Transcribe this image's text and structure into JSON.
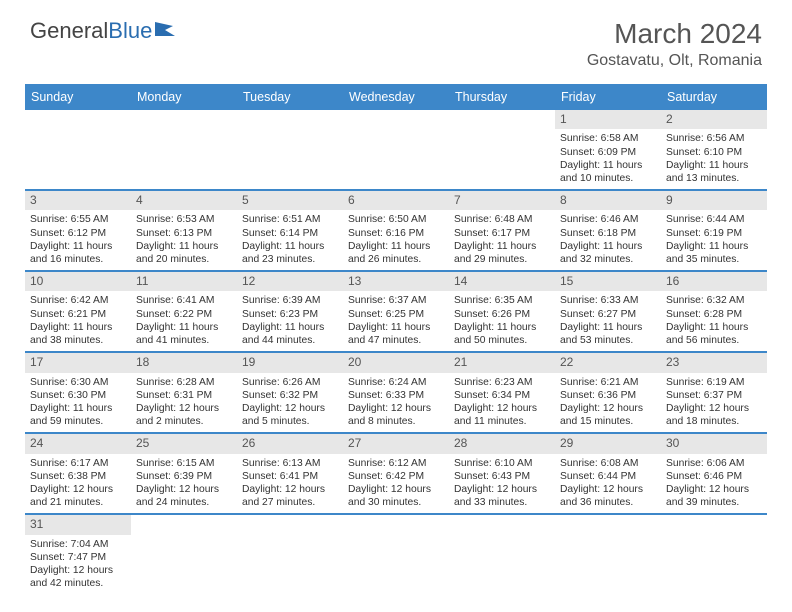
{
  "logo": {
    "text1": "General",
    "text2": "Blue"
  },
  "title": "March 2024",
  "location": "Gostavatu, Olt, Romania",
  "colors": {
    "header_bg": "#3d87c9",
    "header_text": "#ffffff",
    "daynum_bg": "#e7e7e7",
    "week_border": "#3d87c9",
    "body_text": "#333333",
    "title_text": "#555555"
  },
  "dayNames": [
    "Sunday",
    "Monday",
    "Tuesday",
    "Wednesday",
    "Thursday",
    "Friday",
    "Saturday"
  ],
  "weeks": [
    [
      {
        "n": "",
        "sr": "",
        "ss": "",
        "dl": ""
      },
      {
        "n": "",
        "sr": "",
        "ss": "",
        "dl": ""
      },
      {
        "n": "",
        "sr": "",
        "ss": "",
        "dl": ""
      },
      {
        "n": "",
        "sr": "",
        "ss": "",
        "dl": ""
      },
      {
        "n": "",
        "sr": "",
        "ss": "",
        "dl": ""
      },
      {
        "n": "1",
        "sr": "Sunrise: 6:58 AM",
        "ss": "Sunset: 6:09 PM",
        "dl": "Daylight: 11 hours and 10 minutes."
      },
      {
        "n": "2",
        "sr": "Sunrise: 6:56 AM",
        "ss": "Sunset: 6:10 PM",
        "dl": "Daylight: 11 hours and 13 minutes."
      }
    ],
    [
      {
        "n": "3",
        "sr": "Sunrise: 6:55 AM",
        "ss": "Sunset: 6:12 PM",
        "dl": "Daylight: 11 hours and 16 minutes."
      },
      {
        "n": "4",
        "sr": "Sunrise: 6:53 AM",
        "ss": "Sunset: 6:13 PM",
        "dl": "Daylight: 11 hours and 20 minutes."
      },
      {
        "n": "5",
        "sr": "Sunrise: 6:51 AM",
        "ss": "Sunset: 6:14 PM",
        "dl": "Daylight: 11 hours and 23 minutes."
      },
      {
        "n": "6",
        "sr": "Sunrise: 6:50 AM",
        "ss": "Sunset: 6:16 PM",
        "dl": "Daylight: 11 hours and 26 minutes."
      },
      {
        "n": "7",
        "sr": "Sunrise: 6:48 AM",
        "ss": "Sunset: 6:17 PM",
        "dl": "Daylight: 11 hours and 29 minutes."
      },
      {
        "n": "8",
        "sr": "Sunrise: 6:46 AM",
        "ss": "Sunset: 6:18 PM",
        "dl": "Daylight: 11 hours and 32 minutes."
      },
      {
        "n": "9",
        "sr": "Sunrise: 6:44 AM",
        "ss": "Sunset: 6:19 PM",
        "dl": "Daylight: 11 hours and 35 minutes."
      }
    ],
    [
      {
        "n": "10",
        "sr": "Sunrise: 6:42 AM",
        "ss": "Sunset: 6:21 PM",
        "dl": "Daylight: 11 hours and 38 minutes."
      },
      {
        "n": "11",
        "sr": "Sunrise: 6:41 AM",
        "ss": "Sunset: 6:22 PM",
        "dl": "Daylight: 11 hours and 41 minutes."
      },
      {
        "n": "12",
        "sr": "Sunrise: 6:39 AM",
        "ss": "Sunset: 6:23 PM",
        "dl": "Daylight: 11 hours and 44 minutes."
      },
      {
        "n": "13",
        "sr": "Sunrise: 6:37 AM",
        "ss": "Sunset: 6:25 PM",
        "dl": "Daylight: 11 hours and 47 minutes."
      },
      {
        "n": "14",
        "sr": "Sunrise: 6:35 AM",
        "ss": "Sunset: 6:26 PM",
        "dl": "Daylight: 11 hours and 50 minutes."
      },
      {
        "n": "15",
        "sr": "Sunrise: 6:33 AM",
        "ss": "Sunset: 6:27 PM",
        "dl": "Daylight: 11 hours and 53 minutes."
      },
      {
        "n": "16",
        "sr": "Sunrise: 6:32 AM",
        "ss": "Sunset: 6:28 PM",
        "dl": "Daylight: 11 hours and 56 minutes."
      }
    ],
    [
      {
        "n": "17",
        "sr": "Sunrise: 6:30 AM",
        "ss": "Sunset: 6:30 PM",
        "dl": "Daylight: 11 hours and 59 minutes."
      },
      {
        "n": "18",
        "sr": "Sunrise: 6:28 AM",
        "ss": "Sunset: 6:31 PM",
        "dl": "Daylight: 12 hours and 2 minutes."
      },
      {
        "n": "19",
        "sr": "Sunrise: 6:26 AM",
        "ss": "Sunset: 6:32 PM",
        "dl": "Daylight: 12 hours and 5 minutes."
      },
      {
        "n": "20",
        "sr": "Sunrise: 6:24 AM",
        "ss": "Sunset: 6:33 PM",
        "dl": "Daylight: 12 hours and 8 minutes."
      },
      {
        "n": "21",
        "sr": "Sunrise: 6:23 AM",
        "ss": "Sunset: 6:34 PM",
        "dl": "Daylight: 12 hours and 11 minutes."
      },
      {
        "n": "22",
        "sr": "Sunrise: 6:21 AM",
        "ss": "Sunset: 6:36 PM",
        "dl": "Daylight: 12 hours and 15 minutes."
      },
      {
        "n": "23",
        "sr": "Sunrise: 6:19 AM",
        "ss": "Sunset: 6:37 PM",
        "dl": "Daylight: 12 hours and 18 minutes."
      }
    ],
    [
      {
        "n": "24",
        "sr": "Sunrise: 6:17 AM",
        "ss": "Sunset: 6:38 PM",
        "dl": "Daylight: 12 hours and 21 minutes."
      },
      {
        "n": "25",
        "sr": "Sunrise: 6:15 AM",
        "ss": "Sunset: 6:39 PM",
        "dl": "Daylight: 12 hours and 24 minutes."
      },
      {
        "n": "26",
        "sr": "Sunrise: 6:13 AM",
        "ss": "Sunset: 6:41 PM",
        "dl": "Daylight: 12 hours and 27 minutes."
      },
      {
        "n": "27",
        "sr": "Sunrise: 6:12 AM",
        "ss": "Sunset: 6:42 PM",
        "dl": "Daylight: 12 hours and 30 minutes."
      },
      {
        "n": "28",
        "sr": "Sunrise: 6:10 AM",
        "ss": "Sunset: 6:43 PM",
        "dl": "Daylight: 12 hours and 33 minutes."
      },
      {
        "n": "29",
        "sr": "Sunrise: 6:08 AM",
        "ss": "Sunset: 6:44 PM",
        "dl": "Daylight: 12 hours and 36 minutes."
      },
      {
        "n": "30",
        "sr": "Sunrise: 6:06 AM",
        "ss": "Sunset: 6:46 PM",
        "dl": "Daylight: 12 hours and 39 minutes."
      }
    ],
    [
      {
        "n": "31",
        "sr": "Sunrise: 7:04 AM",
        "ss": "Sunset: 7:47 PM",
        "dl": "Daylight: 12 hours and 42 minutes."
      },
      {
        "n": "",
        "sr": "",
        "ss": "",
        "dl": ""
      },
      {
        "n": "",
        "sr": "",
        "ss": "",
        "dl": ""
      },
      {
        "n": "",
        "sr": "",
        "ss": "",
        "dl": ""
      },
      {
        "n": "",
        "sr": "",
        "ss": "",
        "dl": ""
      },
      {
        "n": "",
        "sr": "",
        "ss": "",
        "dl": ""
      },
      {
        "n": "",
        "sr": "",
        "ss": "",
        "dl": ""
      }
    ]
  ]
}
